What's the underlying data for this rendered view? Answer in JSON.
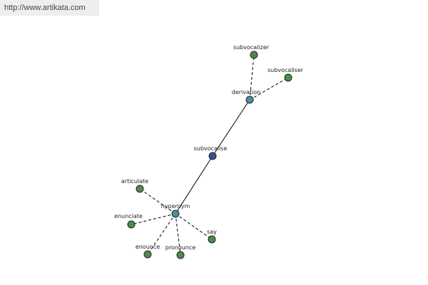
{
  "header": {
    "url": "http://www.artikata.com"
  },
  "nodes": [
    {
      "label": "subvocalise"
    },
    {
      "label": "derivation"
    },
    {
      "label": "hypernym"
    },
    {
      "label": "subvocalizer"
    },
    {
      "label": "subvocaliser"
    },
    {
      "label": "articulate"
    },
    {
      "label": "enunciate"
    },
    {
      "label": "enounce"
    },
    {
      "label": "pronounce"
    },
    {
      "label": "say"
    }
  ]
}
